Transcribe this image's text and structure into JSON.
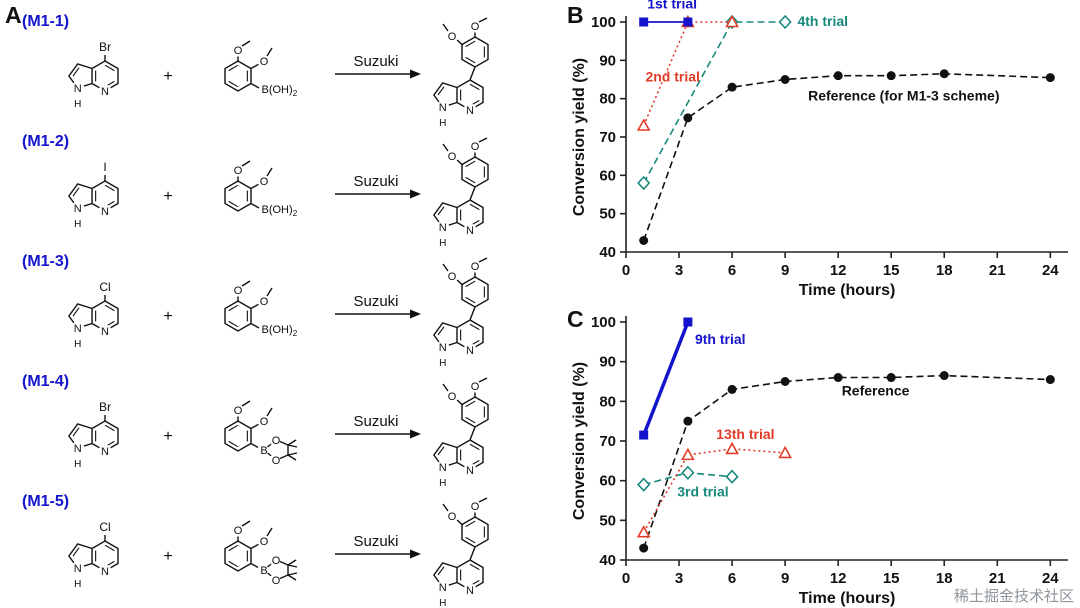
{
  "figure": {
    "panel_a_label": "A",
    "panel_b_label": "B",
    "panel_c_label": "C"
  },
  "colors": {
    "scheme_blue": "#1414cc",
    "trial_blue": "#1414cc",
    "trial_red": "#e03c28",
    "trial_teal": "#18897d",
    "reference_black": "#111111"
  },
  "panel_a": {
    "arrow_label": "Suzuki",
    "plus": "+",
    "atom_labels": {
      "n": "N",
      "h": "H",
      "o": "O",
      "b": "B",
      "b_acid": "B(OH)",
      "b_acid_sub": "2"
    },
    "reactions": [
      {
        "id": "(M1-1)",
        "halogen": "Br",
        "boron_type": "acid"
      },
      {
        "id": "(M1-2)",
        "halogen": "I",
        "boron_type": "acid"
      },
      {
        "id": "(M1-3)",
        "halogen": "Cl",
        "boron_type": "acid"
      },
      {
        "id": "(M1-4)",
        "halogen": "Br",
        "boron_type": "pinacol"
      },
      {
        "id": "(M1-5)",
        "halogen": "Cl",
        "boron_type": "pinacol"
      }
    ]
  },
  "chart_data": [
    {
      "type": "line",
      "panel": "B",
      "title": "",
      "xlabel": "Time (hours)",
      "ylabel": "Conversion yield (%)",
      "xlim": [
        0,
        25
      ],
      "ylim": [
        40,
        100
      ],
      "xticks": [
        0,
        3,
        6,
        9,
        12,
        15,
        18,
        21,
        24
      ],
      "yticks": [
        40,
        50,
        60,
        70,
        80,
        90,
        100
      ],
      "grid": false,
      "legend_position": "inline-annotations",
      "series": [
        {
          "name": "1st trial",
          "color": "#1414cc",
          "marker": "square-filled",
          "line_style": "solid",
          "line_width": 1.8,
          "x": [
            1,
            3.5
          ],
          "y": [
            100,
            100
          ]
        },
        {
          "name": "2nd trial",
          "color": "#e03c28",
          "marker": "triangle-open",
          "line_style": "dotted",
          "line_width": 1.6,
          "x": [
            1,
            3.5,
            6
          ],
          "y": [
            73,
            100,
            100
          ]
        },
        {
          "name": "4th trial",
          "color": "#18897d",
          "marker": "diamond-open",
          "line_style": "dashed",
          "line_width": 1.6,
          "x": [
            1,
            6,
            9
          ],
          "y": [
            58,
            100,
            100
          ]
        },
        {
          "name": "Reference (for M1-3 scheme)",
          "color": "#111111",
          "marker": "circle-filled",
          "line_style": "dashed",
          "line_width": 1.6,
          "x": [
            1,
            3.5,
            6,
            9,
            12,
            15,
            18,
            24
          ],
          "y": [
            43,
            75,
            83,
            85,
            86,
            86,
            86.5,
            85.5
          ]
        }
      ],
      "annotations": [
        {
          "text": "1st trial",
          "x": 1.2,
          "y": 103.5,
          "color": "#1414cc"
        },
        {
          "text": "2nd trial",
          "x": 1.1,
          "y": 84.5,
          "color": "#e03c28"
        },
        {
          "text": "4th trial",
          "x": 9.7,
          "y": 99,
          "color": "#18897d"
        },
        {
          "text": "Reference (for M1-3 scheme)",
          "x": 10.3,
          "y": 79.5,
          "color": "#111111"
        }
      ]
    },
    {
      "type": "line",
      "panel": "C",
      "title": "",
      "xlabel": "Time (hours)",
      "ylabel": "Conversion yield (%)",
      "xlim": [
        0,
        25
      ],
      "ylim": [
        40,
        100
      ],
      "xticks": [
        0,
        3,
        6,
        9,
        12,
        15,
        18,
        21,
        24
      ],
      "yticks": [
        40,
        50,
        60,
        70,
        80,
        90,
        100
      ],
      "grid": false,
      "legend_position": "inline-annotations",
      "series": [
        {
          "name": "9th trial",
          "color": "#1414cc",
          "marker": "square-filled",
          "line_style": "solid",
          "line_width": 3.5,
          "x": [
            1,
            3.5
          ],
          "y": [
            71.5,
            100
          ]
        },
        {
          "name": "13th trial",
          "color": "#e03c28",
          "marker": "triangle-open",
          "line_style": "dotted",
          "line_width": 1.6,
          "x": [
            1,
            3.5,
            6,
            9
          ],
          "y": [
            47,
            66.5,
            68,
            67
          ]
        },
        {
          "name": "3rd trial",
          "color": "#18897d",
          "marker": "diamond-open",
          "line_style": "dashed",
          "line_width": 1.6,
          "x": [
            1,
            3.5,
            6
          ],
          "y": [
            59,
            62,
            61
          ]
        },
        {
          "name": "Reference",
          "color": "#111111",
          "marker": "circle-filled",
          "line_style": "dashed",
          "line_width": 1.6,
          "x": [
            1,
            3.5,
            6,
            9,
            12,
            15,
            18,
            24
          ],
          "y": [
            43,
            75,
            83,
            85,
            86,
            86,
            86.5,
            85.5
          ]
        }
      ],
      "annotations": [
        {
          "text": "9th trial",
          "x": 3.9,
          "y": 94.5,
          "color": "#1414cc"
        },
        {
          "text": "13th trial",
          "x": 5.1,
          "y": 70.5,
          "color": "#e03c28"
        },
        {
          "text": "3rd trial",
          "x": 2.9,
          "y": 56,
          "color": "#18897d"
        },
        {
          "text": "Reference",
          "x": 12.2,
          "y": 81.5,
          "color": "#111111"
        }
      ]
    }
  ],
  "watermark": "稀土掘金技术社区"
}
